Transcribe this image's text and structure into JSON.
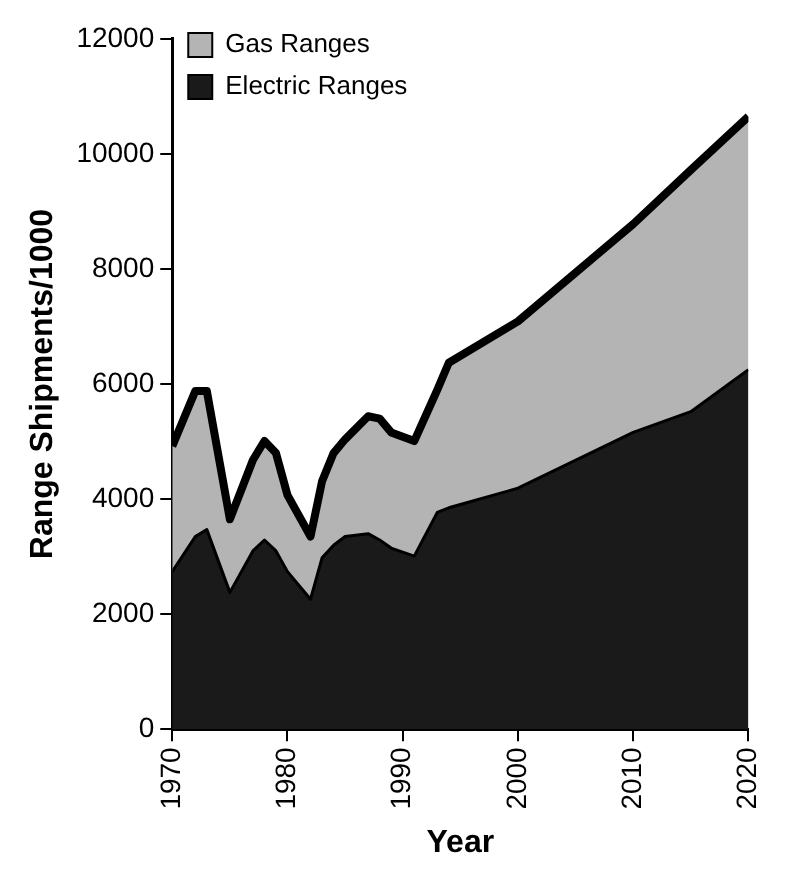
{
  "chart_data": {
    "type": "area",
    "xlabel": "Year",
    "ylabel": "Range Shipments/1000",
    "stacked": true,
    "x": [
      1970,
      1972,
      1973,
      1975,
      1977,
      1978,
      1979,
      1980,
      1982,
      1983,
      1984,
      1985,
      1987,
      1988,
      1989,
      1991,
      1993,
      1994,
      2000,
      2010,
      2015,
      2020
    ],
    "series": [
      {
        "name": "Electric Ranges",
        "color": "#1a1a1a",
        "values": [
          2740,
          3350,
          3470,
          2380,
          3100,
          3290,
          3100,
          2740,
          2260,
          2980,
          3200,
          3350,
          3400,
          3290,
          3150,
          3010,
          3770,
          3850,
          4190,
          5160,
          5520,
          6250
        ]
      },
      {
        "name": "Gas Ranges",
        "color": "#b4b4b4",
        "values": [
          2180,
          2530,
          2410,
          1270,
          1580,
          1720,
          1700,
          1330,
          1090,
          1330,
          1600,
          1690,
          2040,
          2110,
          2010,
          2000,
          2130,
          2520,
          2900,
          3620,
          4200,
          4400
        ]
      }
    ],
    "xlim": [
      1970,
      2020
    ],
    "xticks": [
      1970,
      1980,
      1990,
      2000,
      2010,
      2020
    ],
    "ylim": [
      0,
      12000
    ],
    "yticks": [
      0,
      2000,
      4000,
      6000,
      8000,
      10000,
      12000
    ],
    "grid": false,
    "legend": "top left"
  }
}
